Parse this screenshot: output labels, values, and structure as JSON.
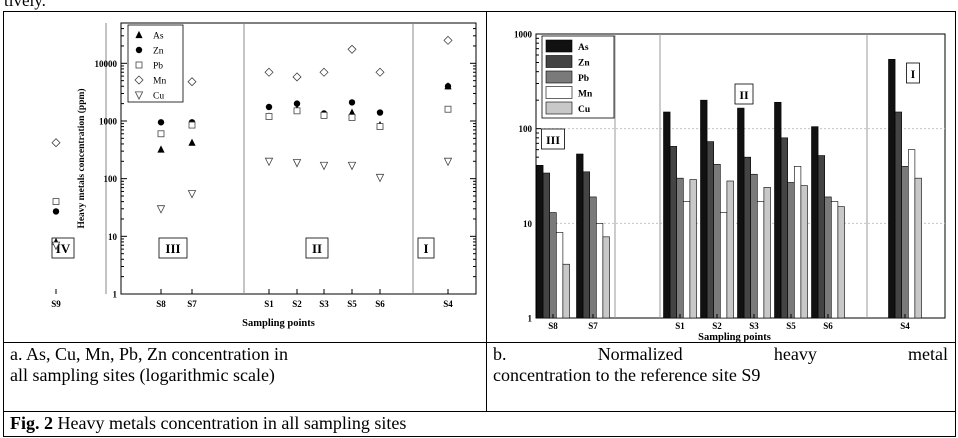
{
  "header_fragment": "tively.",
  "figure_caption": {
    "label": "Fig. 2",
    "text": " Heavy metals concentration in all sampling sites"
  },
  "subcaptions": {
    "a_line1": "a. As, Cu, Mn, Pb, Zn concentration in",
    "a_line2": "all sampling sites (logarithmic scale)",
    "b_line1_words": [
      "b.",
      "Normalized",
      "heavy",
      "metal"
    ],
    "b_line2": "concentration to the reference site S9"
  },
  "chart_data": [
    {
      "type": "scatter",
      "title": "",
      "xlabel": "Sampling points",
      "ylabel": "Heavy metals concentration (ppm)",
      "log_y": true,
      "ylim": [
        1,
        50000
      ],
      "y_ticks": [
        1,
        10,
        100,
        1000,
        10000
      ],
      "y_tick_labels": [
        "1",
        "10",
        "100",
        "1000",
        "10000"
      ],
      "categories": [
        "S9",
        "S8",
        "S7",
        "S1",
        "S2",
        "S3",
        "S5",
        "S6",
        "S4"
      ],
      "groups": [
        {
          "label": "IV",
          "members": [
            "S9"
          ]
        },
        {
          "label": "III",
          "members": [
            "S8",
            "S7"
          ]
        },
        {
          "label": "II",
          "members": [
            "S1",
            "S2",
            "S3",
            "S5",
            "S6"
          ]
        },
        {
          "label": "I",
          "members": [
            "S4"
          ]
        }
      ],
      "legend_position": "top-left",
      "series": [
        {
          "name": "As",
          "marker": "triangle-up-filled",
          "values": [
            8,
            320,
            420,
            1200,
            1600,
            1300,
            1400,
            850,
            4000
          ]
        },
        {
          "name": "Zn",
          "marker": "circle-filled",
          "values": [
            27,
            950,
            950,
            1750,
            2000,
            1350,
            2100,
            1400,
            4000
          ]
        },
        {
          "name": "Pb",
          "marker": "square-open",
          "values": [
            40,
            600,
            850,
            1200,
            1500,
            1250,
            1150,
            800,
            1600
          ]
        },
        {
          "name": "Mn",
          "marker": "diamond-open",
          "values": [
            420,
            3700,
            4800,
            7000,
            5800,
            7000,
            17500,
            7000,
            25000
          ]
        },
        {
          "name": "Cu",
          "marker": "triangle-down-open",
          "values": [
            7,
            30,
            55,
            200,
            190,
            170,
            170,
            105,
            200
          ]
        }
      ]
    },
    {
      "type": "bar",
      "title": "",
      "xlabel": "Sampling points",
      "ylabel": "",
      "log_y": true,
      "ylim": [
        1,
        1000
      ],
      "y_ticks": [
        1,
        10,
        100,
        1000
      ],
      "y_tick_labels": [
        "1",
        "10",
        "100",
        "1000"
      ],
      "categories": [
        "S8",
        "S7",
        "S1",
        "S2",
        "S3",
        "S5",
        "S6",
        "S4"
      ],
      "groups": [
        {
          "label": "III",
          "members": [
            "S8",
            "S7"
          ]
        },
        {
          "label": "II",
          "members": [
            "S1",
            "S2",
            "S3",
            "S5",
            "S6"
          ]
        },
        {
          "label": "I",
          "members": [
            "S4"
          ]
        }
      ],
      "legend_position": "top-left",
      "series": [
        {
          "name": "As",
          "color": "#111111",
          "values": [
            41,
            54,
            150,
            200,
            165,
            190,
            105,
            540
          ]
        },
        {
          "name": "Zn",
          "color": "#444444",
          "values": [
            34,
            35,
            65,
            73,
            50,
            80,
            52,
            150
          ]
        },
        {
          "name": "Pb",
          "color": "#7a7a7a",
          "values": [
            13,
            19,
            30,
            42,
            33,
            27,
            19,
            40
          ]
        },
        {
          "name": "Mn",
          "color": "#ffffff",
          "values": [
            8,
            10,
            17,
            13,
            17,
            40,
            17,
            60
          ]
        },
        {
          "name": "Cu",
          "color": "#c8c8c8",
          "values": [
            3.7,
            7.2,
            29,
            28,
            24,
            25,
            15,
            30
          ]
        }
      ]
    }
  ]
}
